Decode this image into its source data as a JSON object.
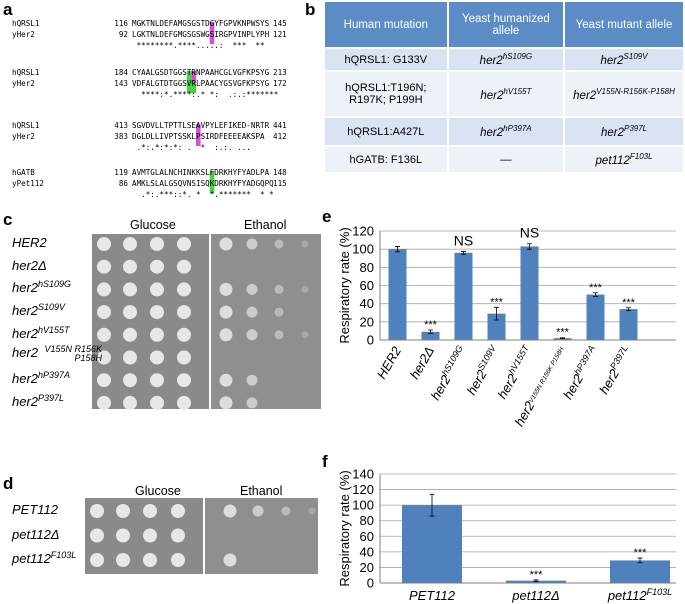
{
  "panel_labels": [
    "a",
    "b",
    "c",
    "d",
    "e",
    "f"
  ],
  "alignment": {
    "blocks": [
      {
        "rows": [
          {
            "name": "hQRSL1",
            "start": "116",
            "seq": "MGKTNLDEFAMGSGSTDGYFGPVKNPWSYS",
            "end": "145"
          },
          {
            "name": "yHer2",
            "start": "92",
            "seq": "LGKTNLDEFGMGSGSWGSIRGPVINPLYPH",
            "end": "121"
          }
        ],
        "consensus": " ********.****.....:  ***  **"
      },
      {
        "rows": [
          {
            "name": "hQRSL1",
            "start": "184",
            "seq": "CYAALGSDTGGSTRNPAAHCGLVGFKPSYG",
            "end": "213"
          },
          {
            "name": "yHer2",
            "start": "143",
            "seq": "VDFALGTDTGGSVRLPAACYGSVGFKPSYG",
            "end": "172"
          }
        ],
        "consensus": "  ****:*.****:.* *:  .:.:*******"
      },
      {
        "rows": [
          {
            "name": "hQRSL1",
            "start": "413",
            "seq": "SGVDVLLTPTTLSEAVPYLEFIKED-NRTR",
            "end": "441"
          },
          {
            "name": "yHer2",
            "start": "383",
            "seq": "DGLDLLIVPTSSKLPSIRDFEEEEAKSPA",
            "end": "412"
          }
        ],
        "consensus": " .*:.*:*:*: .  *  :.:. ..."
      },
      {
        "rows": [
          {
            "name": "hGATB",
            "start": "119",
            "seq": "AVMTGLALNCHINKKSLFDRKHYFYADLPA",
            "end": "148"
          },
          {
            "name": "yPet112",
            "start": "86",
            "seq": "AMKLSLALGSQVNSISQKDRKHYFYADGQPQ",
            "end": "115"
          }
        ],
        "consensus": "  .*:.***::*. *  *.*******  * *"
      }
    ]
  },
  "table": {
    "header": [
      "Human mutation",
      "Yeast humanized allele",
      "Yeast mutant allele"
    ],
    "rows": [
      [
        {
          "text": "hQRSL1: G133V"
        },
        {
          "text": "her2",
          "sup": "hS109G"
        },
        {
          "text": "her2",
          "sup": "S109V"
        }
      ],
      [
        {
          "text": "hQRSL1:T196N; R197K; P199H"
        },
        {
          "text": "her2",
          "sup": "hV155T"
        },
        {
          "text": "her2",
          "sup": "V155N-R156K-P158H"
        }
      ],
      [
        {
          "text": "hQRSL1:A427L"
        },
        {
          "text": "her2",
          "sup": "hP397A"
        },
        {
          "text": "her2",
          "sup": "P397L"
        }
      ],
      [
        {
          "text": "hGATB: F136L"
        },
        {
          "text": "—"
        },
        {
          "text": "pet112",
          "sup": "F103L"
        }
      ]
    ]
  },
  "growth_c": {
    "conditions": [
      "Glucose",
      "Ethanol"
    ],
    "strains": [
      {
        "text": "HER2"
      },
      {
        "text": "her2Δ"
      },
      {
        "text": "her2",
        "sup": "hS109G"
      },
      {
        "text": "her2",
        "sup": "S109V"
      },
      {
        "text": "her2",
        "sup": "hV155T"
      },
      {
        "text": "her2",
        "sup": "V155N R156K P158H"
      },
      {
        "text": "her2",
        "sup": "hP397A"
      },
      {
        "text": "her2",
        "sup": "P397L"
      }
    ]
  },
  "growth_d": {
    "conditions": [
      "Glucose",
      "Ethanol"
    ],
    "strains": [
      {
        "text": "PET112"
      },
      {
        "text": "pet112Δ"
      },
      {
        "text": "pet112",
        "sup": "F103L"
      }
    ]
  },
  "chart_data": [
    {
      "type": "bar",
      "y_label": "Respiratory rate (%)",
      "color": "#4f81bd",
      "categories": [
        {
          "text": "HER2"
        },
        {
          "text": "her2Δ"
        },
        {
          "text": "her2",
          "sup": "hS109G"
        },
        {
          "text": "her2",
          "sup": "S109V"
        },
        {
          "text": "her2",
          "sup": "hV155T"
        },
        {
          "text": "her2",
          "sup": "V155N R156K P158H"
        },
        {
          "text": "her2",
          "sup": "hP397A"
        },
        {
          "text": "her2",
          "sup": "P397L"
        }
      ],
      "values": [
        100,
        9,
        96,
        29,
        103,
        2,
        50,
        34
      ],
      "errors": [
        3,
        2,
        1.5,
        7,
        3,
        0.5,
        2,
        1.5
      ],
      "annotations": [
        null,
        "***",
        "NS",
        "***",
        "NS",
        "***",
        "***",
        "***"
      ],
      "ylim": [
        0,
        120
      ],
      "yticks": [
        0,
        20,
        40,
        60,
        80,
        100,
        120
      ],
      "grid": true
    },
    {
      "type": "bar",
      "y_label": "Respiratory rate (%)",
      "color": "#4f81bd",
      "categories": [
        {
          "text": "PET112"
        },
        {
          "text": "pet112Δ"
        },
        {
          "text": "pet112",
          "sup": "F103L"
        }
      ],
      "values": [
        100,
        3,
        29
      ],
      "errors": [
        14,
        1,
        3
      ],
      "annotations": [
        null,
        "***",
        "***"
      ],
      "ylim": [
        0,
        140
      ],
      "yticks": [
        0,
        20,
        40,
        60,
        80,
        100,
        120,
        140
      ],
      "grid": true
    }
  ]
}
